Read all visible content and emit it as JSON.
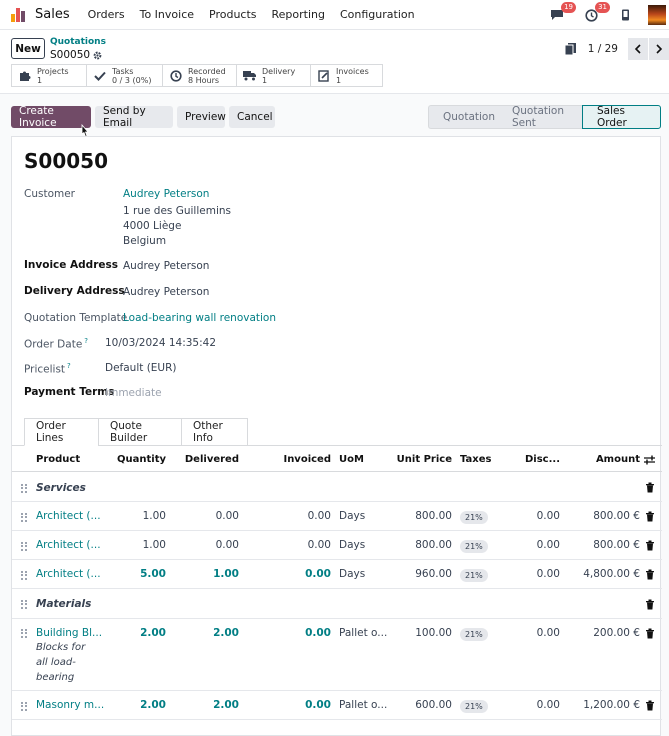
{
  "topbar": {
    "app_name": "Sales",
    "menu": [
      "Orders",
      "To Invoice",
      "Products",
      "Reporting",
      "Configuration"
    ],
    "messages_badge": "19",
    "activities_badge": "31",
    "icons": [
      "messages-icon",
      "clock-icon",
      "phone-icon"
    ]
  },
  "control_panel": {
    "new_label": "New",
    "breadcrumb_parent": "Quotations",
    "breadcrumb_current": "S00050",
    "pager": "1 / 29"
  },
  "stat_buttons": [
    {
      "title": "Projects",
      "value": "1",
      "icon": "puzzle-icon"
    },
    {
      "title": "Tasks",
      "value": "0 / 3 (0%)",
      "icon": "check-icon"
    },
    {
      "title": "Recorded",
      "value": "8 Hours",
      "icon": "clock-icon"
    },
    {
      "title": "Delivery",
      "value": "1",
      "icon": "truck-icon"
    },
    {
      "title": "Invoices",
      "value": "1",
      "icon": "invoice-icon"
    }
  ],
  "actions": {
    "create_invoice": "Create Invoice",
    "send_email": "Send by Email",
    "preview": "Preview",
    "cancel": "Cancel"
  },
  "status_stages": [
    "Quotation",
    "Quotation Sent",
    "Sales Order"
  ],
  "status_active": "Sales Order",
  "form": {
    "name": "S00050",
    "customer_label": "Customer",
    "customer_name": "Audrey Peterson",
    "customer_address": [
      "1 rue des Guillemins",
      "4000 Liège",
      "Belgium"
    ],
    "invoice_address_label": "Invoice Address",
    "invoice_address": "Audrey Peterson",
    "delivery_address_label": "Delivery Address",
    "delivery_address": "Audrey Peterson",
    "template_label": "Quotation Template",
    "template": "Load-bearing wall renovation",
    "order_date_label": "Order Date",
    "order_date_help": "?",
    "order_date": "10/03/2024 14:35:42",
    "pricelist_label": "Pricelist",
    "pricelist_help": "?",
    "pricelist": "Default (EUR)",
    "payment_terms_label": "Payment Terms",
    "payment_terms": "Immediate"
  },
  "tabs": [
    "Order Lines",
    "Quote Builder",
    "Other Info"
  ],
  "table": {
    "headers": [
      "Product",
      "Quantity",
      "Delivered",
      "Invoiced",
      "UoM",
      "Unit Price",
      "Taxes",
      "Disc...",
      "Amount"
    ],
    "rows": [
      {
        "type": "section",
        "label": "Services"
      },
      {
        "type": "line",
        "product": "Architect (...",
        "qty": "1.00",
        "delivered": "0.00",
        "invoiced": "0.00",
        "uom": "Days",
        "price": "800.00",
        "tax": "21%",
        "disc": "0.00",
        "amount": "800.00 €",
        "highlight": false
      },
      {
        "type": "line",
        "product": "Architect (...",
        "qty": "1.00",
        "delivered": "0.00",
        "invoiced": "0.00",
        "uom": "Days",
        "price": "800.00",
        "tax": "21%",
        "disc": "0.00",
        "amount": "800.00 €",
        "highlight": false
      },
      {
        "type": "line",
        "product": "Architect (...",
        "qty": "5.00",
        "delivered": "1.00",
        "invoiced": "0.00",
        "uom": "Days",
        "price": "960.00",
        "tax": "21%",
        "disc": "0.00",
        "amount": "4,800.00 €",
        "highlight": true
      },
      {
        "type": "section",
        "label": "Materials"
      },
      {
        "type": "line",
        "product": "Building Bl...",
        "desc": "Blocks for all load-bearing",
        "qty": "2.00",
        "delivered": "2.00",
        "invoiced": "0.00",
        "uom": "Pallet o...",
        "price": "100.00",
        "tax": "21%",
        "disc": "0.00",
        "amount": "200.00 €",
        "highlight": true
      },
      {
        "type": "line",
        "product": "Masonry m...",
        "qty": "2.00",
        "delivered": "2.00",
        "invoiced": "0.00",
        "uom": "Pallet o...",
        "price": "600.00",
        "tax": "21%",
        "disc": "0.00",
        "amount": "1,200.00 €",
        "highlight": true
      }
    ]
  },
  "colors": {
    "primary": "#714b67",
    "link": "#017e84",
    "badge": "#e55353"
  }
}
